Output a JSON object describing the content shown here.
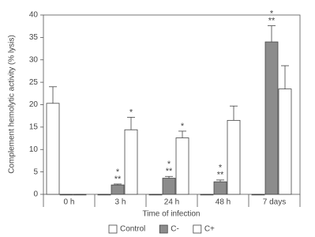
{
  "chart_data": {
    "type": "bar",
    "y_label": "Complement hemolytic activity (% lysis)",
    "x_label": "Time of infection",
    "categories": [
      "0 h",
      "3 h",
      "24 h",
      "48 h",
      "7 days"
    ],
    "series": [
      {
        "name": "Control",
        "color": "#ffffff",
        "values": [
          20.3,
          0,
          0,
          0,
          0
        ],
        "errors": [
          3.7,
          0,
          0,
          0,
          0
        ]
      },
      {
        "name": "C-",
        "color": "#8c8c8c",
        "values": [
          0,
          2.1,
          3.6,
          2.8,
          34
        ],
        "errors": [
          0,
          0.2,
          0.4,
          0.4,
          3.6
        ],
        "annotations": [
          null,
          [
            "*",
            "**"
          ],
          [
            "*",
            "**"
          ],
          [
            "*",
            "**"
          ],
          [
            "*",
            "**"
          ]
        ]
      },
      {
        "name": "C+",
        "color": "#ffffff",
        "values": [
          0,
          14.4,
          12.6,
          16.5,
          23.5
        ],
        "errors": [
          0,
          2.8,
          1.5,
          3.2,
          5.2
        ],
        "annotations": [
          null,
          [
            "*"
          ],
          [
            "*"
          ],
          null,
          null
        ]
      }
    ],
    "ylim": [
      0,
      40
    ],
    "yticks": [
      0,
      5,
      10,
      15,
      20,
      25,
      30,
      35,
      40
    ]
  }
}
